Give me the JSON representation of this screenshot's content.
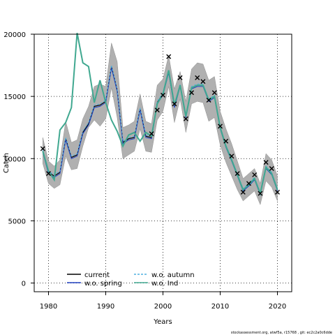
{
  "chart_data": {
    "type": "line",
    "xlabel": "Years",
    "ylabel": "Catch",
    "xlim": [
      1977.5,
      2022.5
    ],
    "ylim": [
      -700,
      20000
    ],
    "x_ticks": [
      1980,
      1990,
      2000,
      2010,
      2020
    ],
    "y_ticks": [
      0,
      5000,
      10000,
      15000,
      20000
    ],
    "grid": "dotted",
    "legend_position": "bottom-left",
    "x": [
      1979,
      1980,
      1981,
      1982,
      1983,
      1984,
      1985,
      1986,
      1987,
      1988,
      1989,
      1990,
      1991,
      1992,
      1993,
      1994,
      1995,
      1996,
      1997,
      1998,
      1999,
      2000,
      2001,
      2002,
      2003,
      2004,
      2005,
      2006,
      2007,
      2008,
      2009,
      2010,
      2011,
      2012,
      2013,
      2014,
      2015,
      2016,
      2017,
      2018,
      2019,
      2020
    ],
    "band": {
      "upper": [
        11700,
        9800,
        9400,
        9900,
        13000,
        11300,
        11500,
        13200,
        14200,
        15800,
        16000,
        15800,
        19300,
        17800,
        12500,
        12700,
        13000,
        15200,
        13000,
        12800,
        15900,
        16400,
        18300,
        15600,
        17000,
        14600,
        17200,
        17700,
        17600,
        16300,
        16600,
        13800,
        12400,
        11200,
        9800,
        8400,
        8800,
        9200,
        8000,
        10400,
        9900,
        8600
      ],
      "lower": [
        9600,
        8000,
        7600,
        7900,
        10200,
        9100,
        9200,
        11000,
        12500,
        13100,
        12600,
        13200,
        15700,
        13300,
        10000,
        10300,
        10600,
        12400,
        10600,
        10500,
        13100,
        13800,
        15800,
        12900,
        14800,
        12100,
        14400,
        14600,
        14500,
        13000,
        13300,
        11100,
        9700,
        8600,
        7500,
        6600,
        7000,
        7400,
        6300,
        8200,
        7700,
        6600
      ]
    },
    "series": [
      {
        "name": "current",
        "color": "#000000",
        "values": [
          10600,
          8900,
          8600,
          8900,
          11600,
          10100,
          10300,
          12100,
          12800,
          14200,
          14300,
          14600,
          17400,
          15500,
          11300,
          11600,
          11700,
          14000,
          11800,
          11700,
          14500,
          15200,
          17000,
          14200,
          15900,
          13400,
          15700,
          15900,
          15900,
          14700,
          15000,
          12500,
          11000,
          9900,
          8700,
          7500,
          7900,
          8400,
          7200,
          9300,
          8800,
          7500
        ]
      },
      {
        "name": "w.o. spring",
        "color": "#2040c0",
        "values": [
          10500,
          8800,
          8500,
          8800,
          11500,
          10000,
          10200,
          12000,
          12700,
          14100,
          14200,
          14500,
          17300,
          15400,
          11200,
          11500,
          11600,
          13900,
          11700,
          11600,
          14400,
          15100,
          16900,
          14100,
          15800,
          13300,
          15600,
          15800,
          15800,
          14600,
          14900,
          12400,
          10900,
          9800,
          8600,
          7400,
          7800,
          8300,
          7100,
          9200,
          8700,
          7400
        ]
      },
      {
        "name": "w.o. autumn",
        "color": "#4fb0e0",
        "values": [
          10700,
          9000,
          8700,
          9000,
          11700,
          10200,
          10400,
          12200,
          12900,
          14300,
          14400,
          14700,
          17500,
          15600,
          11400,
          11700,
          11800,
          14100,
          11900,
          11800,
          14600,
          15300,
          17100,
          14300,
          16000,
          13500,
          15800,
          16000,
          16000,
          14800,
          15100,
          12600,
          11100,
          10000,
          8800,
          7600,
          8000,
          8500,
          7300,
          9400,
          8900,
          7600
        ]
      },
      {
        "name": "w.o. Ind",
        "color": "#40a890",
        "values": [
          10600,
          9000,
          8300,
          12300,
          12900,
          14100,
          20100,
          17700,
          17400,
          14500,
          16300,
          14500,
          13100,
          12200,
          11000,
          11900,
          12100,
          11400,
          12100,
          11800,
          14400,
          15200,
          17100,
          14300,
          15900,
          13400,
          15700,
          15900,
          15900,
          14700,
          15000,
          12500,
          11000,
          9900,
          8700,
          7500,
          7900,
          8400,
          7200,
          9300,
          8800,
          7500
        ]
      }
    ],
    "observed": {
      "marker": "x",
      "values": [
        10800,
        8800,
        null,
        null,
        null,
        null,
        null,
        null,
        null,
        null,
        null,
        null,
        null,
        null,
        null,
        null,
        null,
        null,
        null,
        12000,
        13900,
        15100,
        18200,
        14400,
        16500,
        13200,
        15300,
        16500,
        16200,
        14700,
        15300,
        12600,
        11400,
        10200,
        8800,
        7300,
        8000,
        8700,
        7200,
        9700,
        9200,
        7300
      ]
    },
    "legend": [
      {
        "label": "current",
        "style": "solid",
        "color": "#000000"
      },
      {
        "label": "w.o. spring",
        "style": "solid",
        "color": "#2040c0"
      },
      {
        "label": "w.o. autumn",
        "style": "dashed",
        "color": "#4fb0e0"
      },
      {
        "label": "w.o. Ind",
        "style": "solid",
        "color": "#40a890"
      }
    ]
  },
  "footer": "stockassessment.org, atwf5a, r15768 , git: ec2c2a0c6dde"
}
